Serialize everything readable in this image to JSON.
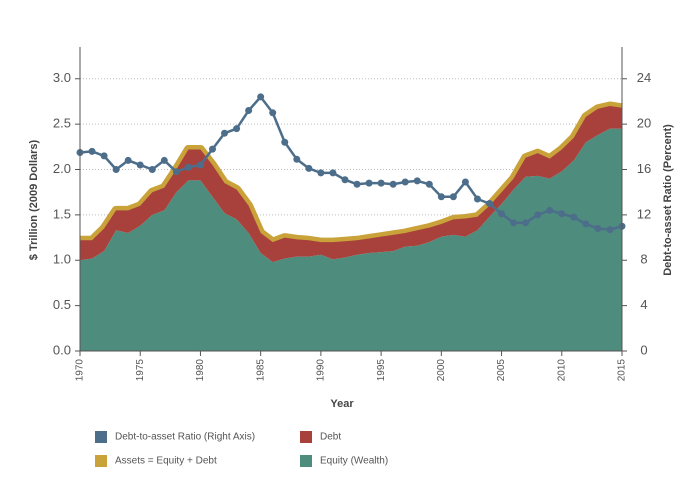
{
  "chart_data": {
    "type": "area",
    "x_label": "Year",
    "y_label": "$ Trillion (2009 Dollars)",
    "y2_label": "Debt-to-asset Ratio (Percent)",
    "x": [
      1970,
      1971,
      1972,
      1973,
      1974,
      1975,
      1976,
      1977,
      1978,
      1979,
      1980,
      1981,
      1982,
      1983,
      1984,
      1985,
      1986,
      1987,
      1988,
      1989,
      1990,
      1991,
      1992,
      1993,
      1994,
      1995,
      1996,
      1997,
      1998,
      1999,
      2000,
      2001,
      2002,
      2003,
      2004,
      2005,
      2006,
      2007,
      2008,
      2009,
      2010,
      2011,
      2012,
      2013,
      2014,
      2015
    ],
    "xlim": [
      1970,
      2015
    ],
    "xticks": [
      1970,
      1975,
      1980,
      1985,
      1990,
      1995,
      2000,
      2005,
      2010,
      2015
    ],
    "ylim": [
      0,
      3.35
    ],
    "yticks": [
      {
        "value": 0,
        "label": "0.0"
      },
      0.5,
      {
        "value": 1,
        "label": "1.0"
      },
      1.5,
      {
        "value": 2,
        "label": "2.0"
      },
      2.5,
      {
        "value": 3,
        "label": "3.0"
      }
    ],
    "y2lim": [
      0,
      26.8
    ],
    "y2ticks": [
      0,
      4,
      8,
      12,
      16,
      20,
      24
    ],
    "grid": true,
    "legend": "bottom",
    "series": [
      {
        "name": "Debt-to-asset Ratio (Right Axis)",
        "color": "#4d6e8a",
        "mark": "line",
        "axis": "y2",
        "values": [
          17.5,
          17.6,
          17.2,
          16.0,
          16.8,
          16.4,
          16.0,
          16.8,
          15.8,
          16.2,
          16.4,
          17.8,
          19.2,
          19.6,
          21.2,
          22.4,
          21.0,
          18.4,
          16.9,
          16.1,
          15.7,
          15.7,
          15.1,
          14.7,
          14.8,
          14.8,
          14.7,
          14.9,
          15.0,
          14.7,
          13.6,
          13.6,
          14.9,
          13.4,
          13.0,
          12.1,
          11.3,
          11.3,
          12.0,
          12.4,
          12.1,
          11.8,
          11.2,
          10.8,
          10.7,
          11.0
        ]
      },
      {
        "name": "Debt",
        "color": "#a8413b",
        "mark": "area",
        "stack_on": 3,
        "values": [
          0.22,
          0.2,
          0.25,
          0.22,
          0.25,
          0.22,
          0.25,
          0.25,
          0.25,
          0.34,
          0.34,
          0.35,
          0.33,
          0.33,
          0.3,
          0.22,
          0.22,
          0.23,
          0.19,
          0.18,
          0.14,
          0.19,
          0.18,
          0.16,
          0.16,
          0.17,
          0.18,
          0.15,
          0.17,
          0.16,
          0.14,
          0.17,
          0.2,
          0.15,
          0.12,
          0.13,
          0.12,
          0.21,
          0.25,
          0.22,
          0.24,
          0.25,
          0.28,
          0.29,
          0.25,
          0.23
        ]
      },
      {
        "name": "Assets = Equity + Debt",
        "color": "#c9a23a",
        "mark": "band",
        "values": [
          1.22,
          1.22,
          1.35,
          1.55,
          1.55,
          1.6,
          1.75,
          1.8,
          2.0,
          2.22,
          2.22,
          2.05,
          1.85,
          1.78,
          1.6,
          1.3,
          1.2,
          1.25,
          1.23,
          1.22,
          1.2,
          1.2,
          1.21,
          1.22,
          1.24,
          1.26,
          1.28,
          1.3,
          1.33,
          1.36,
          1.4,
          1.45,
          1.46,
          1.48,
          1.6,
          1.75,
          1.9,
          2.13,
          2.18,
          2.12,
          2.22,
          2.35,
          2.58,
          2.67,
          2.7,
          2.68
        ]
      },
      {
        "name": "Equity (Wealth)",
        "color": "#4e8c7d",
        "mark": "area",
        "values": [
          1.0,
          1.02,
          1.1,
          1.33,
          1.3,
          1.38,
          1.5,
          1.55,
          1.75,
          1.88,
          1.88,
          1.7,
          1.52,
          1.45,
          1.3,
          1.08,
          0.98,
          1.02,
          1.04,
          1.04,
          1.06,
          1.01,
          1.03,
          1.06,
          1.08,
          1.09,
          1.1,
          1.15,
          1.16,
          1.2,
          1.26,
          1.28,
          1.26,
          1.33,
          1.48,
          1.62,
          1.78,
          1.92,
          1.93,
          1.9,
          1.98,
          2.1,
          2.3,
          2.38,
          2.45,
          2.45
        ]
      }
    ]
  }
}
